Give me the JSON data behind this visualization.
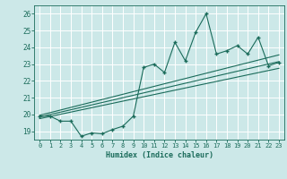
{
  "xlabel": "Humidex (Indice chaleur)",
  "xlim": [
    -0.5,
    23.5
  ],
  "ylim": [
    18.5,
    26.5
  ],
  "xticks": [
    0,
    1,
    2,
    3,
    4,
    5,
    6,
    7,
    8,
    9,
    10,
    11,
    12,
    13,
    14,
    15,
    16,
    17,
    18,
    19,
    20,
    21,
    22,
    23
  ],
  "yticks": [
    19,
    20,
    21,
    22,
    23,
    24,
    25,
    26
  ],
  "bg_color": "#cce8e8",
  "grid_color": "#ffffff",
  "line_color": "#1a6b5a",
  "main_x": [
    0,
    1,
    2,
    3,
    4,
    5,
    6,
    7,
    8,
    9,
    10,
    11,
    12,
    13,
    14,
    15,
    16,
    17,
    18,
    19,
    20,
    21,
    22,
    23
  ],
  "main_y": [
    19.9,
    19.9,
    19.6,
    19.6,
    18.7,
    18.9,
    18.85,
    19.1,
    19.3,
    19.9,
    22.8,
    23.0,
    22.5,
    24.3,
    23.2,
    24.9,
    26.0,
    23.6,
    23.8,
    24.1,
    23.6,
    24.6,
    22.9,
    23.1
  ],
  "trend1_x": [
    0,
    23
  ],
  "trend1_y": [
    19.85,
    23.15
  ],
  "trend2_x": [
    0,
    23
  ],
  "trend2_y": [
    19.75,
    22.75
  ],
  "trend3_x": [
    0,
    23
  ],
  "trend3_y": [
    19.95,
    23.55
  ]
}
